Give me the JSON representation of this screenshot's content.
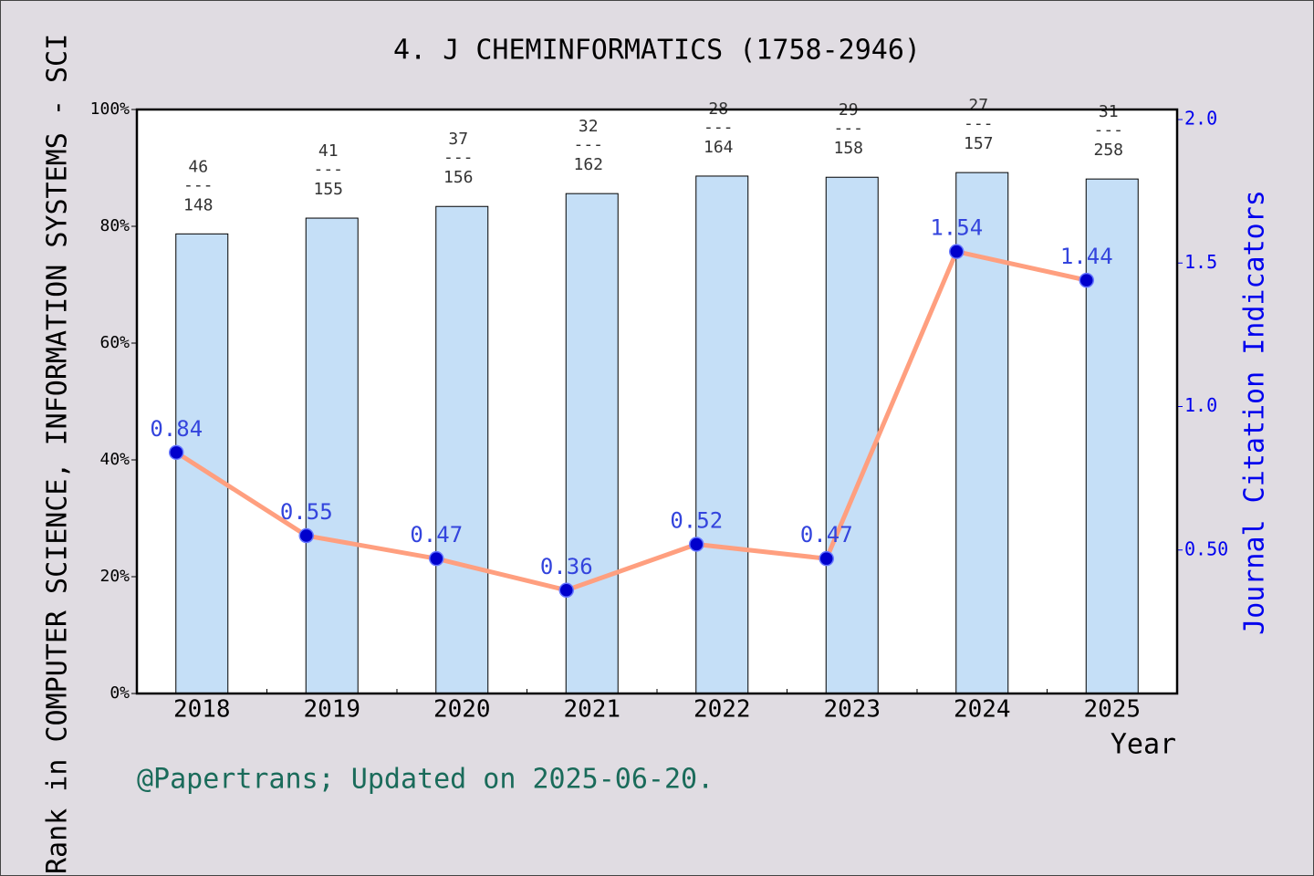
{
  "chart_data": {
    "type": "bar",
    "title": "4. J CHEMINFORMATICS (1758-2946)",
    "x_label": "Year",
    "y_label": "Rank in COMPUTER SCIENCE, INFORMATION SYSTEMS - SCI",
    "y2_label": "Journal Citation Indicators",
    "footer": "@Papertrans; Updated on 2025-06-20.",
    "categories": [
      "2018",
      "2019",
      "2020",
      "2021",
      "2022",
      "2023",
      "2024",
      "2025"
    ],
    "series": [
      {
        "type": "bar",
        "color": "#c5dff7",
        "values": [
          78.7,
          81.4,
          83.4,
          85.6,
          88.6,
          88.4,
          89.2,
          88.1
        ],
        "rank_labels": {
          "ranks": [
            46,
            41,
            37,
            32,
            28,
            29,
            27,
            31
          ],
          "totals": [
            148,
            155,
            156,
            162,
            164,
            158,
            157,
            258
          ],
          "separator": "---"
        }
      },
      {
        "type": "line",
        "axis": "y2",
        "color": "#ff9f7f",
        "marker_color": "#0000cc",
        "values": [
          0.84,
          0.55,
          0.47,
          0.36,
          0.52,
          0.47,
          1.54,
          1.44
        ]
      }
    ],
    "ylim": [
      0,
      100
    ],
    "yticks": [
      {
        "value": 0,
        "label": "0%"
      },
      {
        "value": 20,
        "label": "20%"
      },
      {
        "value": 40,
        "label": "40%"
      },
      {
        "value": 60,
        "label": "60%"
      },
      {
        "value": 80,
        "label": "80%"
      },
      {
        "value": 100,
        "label": "100%"
      }
    ],
    "y2lim": [
      0,
      2.035
    ],
    "y2ticks": [
      {
        "value": 0.5,
        "label": "0.50"
      },
      {
        "value": 1,
        "label": "1.0"
      },
      {
        "value": 1.5,
        "label": "1.5"
      },
      {
        "value": 2,
        "label": "2.0"
      }
    ]
  }
}
